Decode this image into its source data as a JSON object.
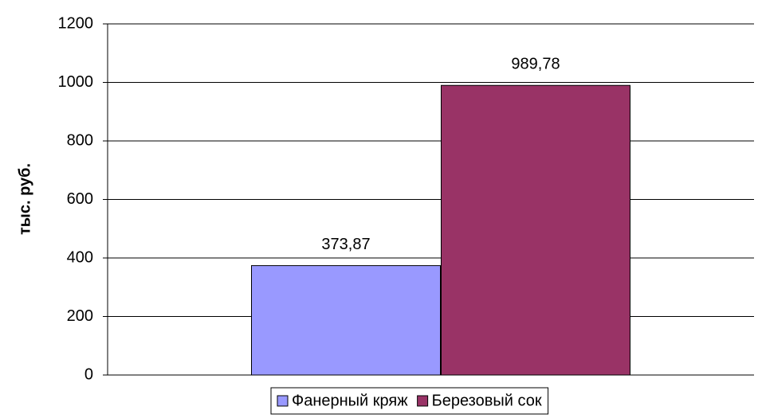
{
  "chart_data": {
    "type": "bar",
    "ylabel": "тыс. руб.",
    "categories": [
      null
    ],
    "series": [
      {
        "name": "Фанерный кряж",
        "color": "#9999ff",
        "values": [
          373.87
        ],
        "value_labels": [
          "373,87"
        ]
      },
      {
        "name": "Березовый сок",
        "color": "#993366",
        "values": [
          989.78
        ],
        "value_labels": [
          "989,78"
        ]
      }
    ],
    "ylim": [
      0,
      1200
    ],
    "yticks": [
      0,
      200,
      400,
      600,
      800,
      1000,
      1200
    ],
    "grid": true,
    "legend": "bottom"
  }
}
